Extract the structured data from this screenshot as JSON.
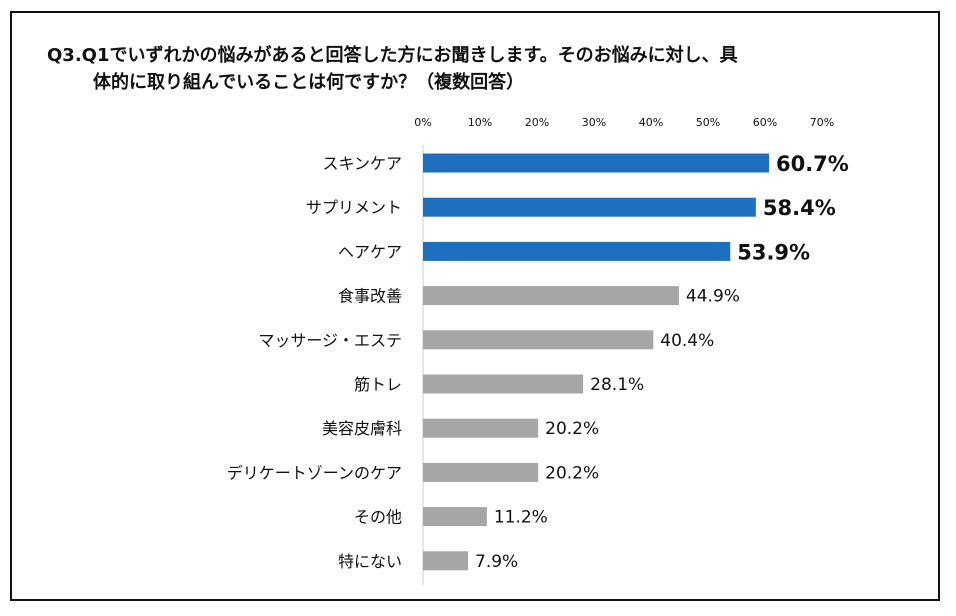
{
  "chart_data": {
    "type": "bar",
    "orientation": "horizontal",
    "title_line1": "Q3.Q1でいずれかの悩みがあると回答した方にお聞きします。そのお悩みに対し、具",
    "title_line2": "体的に取り組んでいることは何ですか？（複数回答）",
    "xlim": [
      0,
      70
    ],
    "ticks": [
      "0%",
      "10%",
      "20%",
      "30%",
      "40%",
      "50%",
      "60%",
      "70%"
    ],
    "categories": [
      "スキンケア",
      "サプリメント",
      "ヘアケア",
      "食事改善",
      "マッサージ・エステ",
      "筋トレ",
      "美容皮膚科",
      "デリケートゾーンのケア",
      "その他",
      "特にない"
    ],
    "values": [
      60.7,
      58.4,
      53.9,
      44.9,
      40.4,
      28.1,
      20.2,
      20.2,
      11.2,
      7.9
    ],
    "labels": [
      "60.7%",
      "58.4%",
      "53.9%",
      "44.9%",
      "40.4%",
      "28.1%",
      "20.2%",
      "20.2%",
      "11.2%",
      "7.9%"
    ],
    "highlight_count": 3,
    "colors": {
      "highlight": "#1f6fbf",
      "normal": "#a6a6a6",
      "axis": "#cccccc",
      "text": "#111111"
    }
  }
}
